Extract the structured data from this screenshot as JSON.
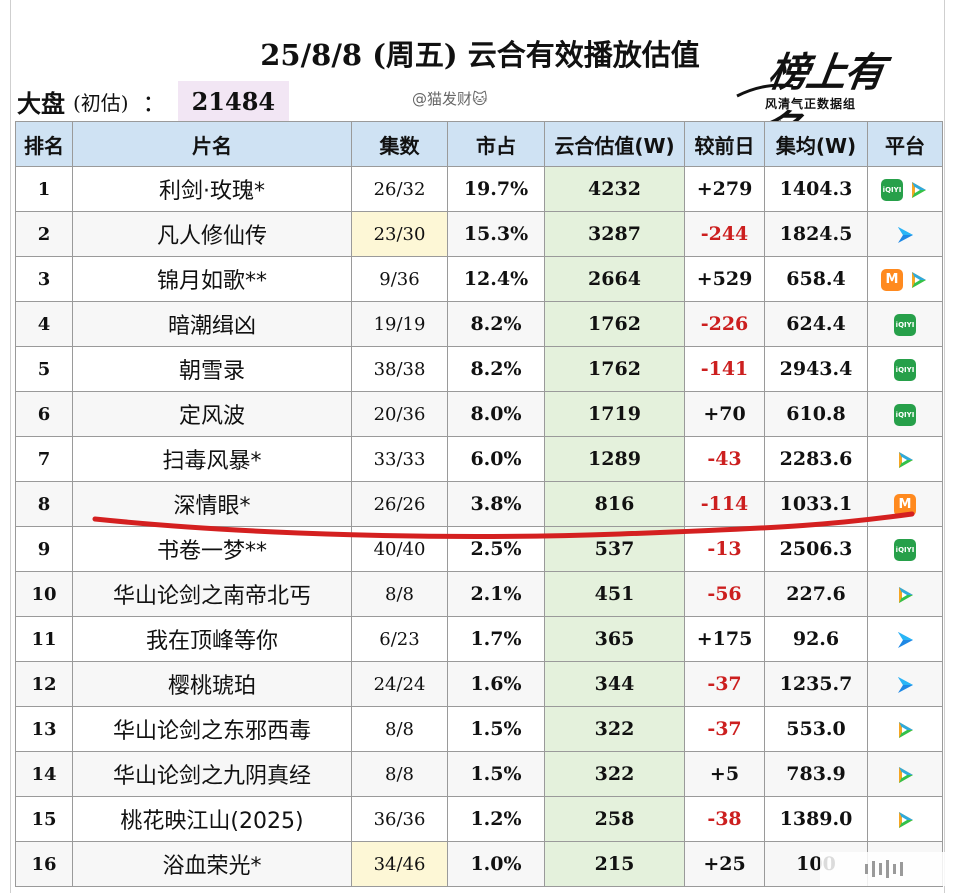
{
  "header": {
    "title": "25/8/8 (周五) 云合有效播放估值",
    "market_label": "大盘",
    "market_sub": "(初估)",
    "market_colon": "：",
    "market_value": "21484",
    "credit": "@猫发财🐱",
    "logo_brand": "榜上有名",
    "logo_tagline": "风清气正数据组"
  },
  "columns": [
    "排名",
    "片名",
    "集数",
    "市占",
    "云合估值(W)",
    "较前日",
    "集均(W)",
    "平台"
  ],
  "rows": [
    {
      "rank": "1",
      "name": "利剑·玫瑰*",
      "episodes": "26/32",
      "share": "19.7%",
      "estimate": "4232",
      "change": "+279",
      "avg": "1404.3",
      "platforms": [
        "iqiyi",
        "tencent"
      ]
    },
    {
      "rank": "2",
      "name": "凡人修仙传",
      "episodes": "23/30",
      "share": "15.3%",
      "estimate": "3287",
      "change": "-244",
      "avg": "1824.5",
      "platforms": [
        "youku"
      ]
    },
    {
      "rank": "3",
      "name": "锦月如歌**",
      "episodes": "9/36",
      "share": "12.4%",
      "estimate": "2664",
      "change": "+529",
      "avg": "658.4",
      "platforms": [
        "mango",
        "tencent"
      ]
    },
    {
      "rank": "4",
      "name": "暗潮缉凶",
      "episodes": "19/19",
      "share": "8.2%",
      "estimate": "1762",
      "change": "-226",
      "avg": "624.4",
      "platforms": [
        "iqiyi"
      ]
    },
    {
      "rank": "5",
      "name": "朝雪录",
      "episodes": "38/38",
      "share": "8.2%",
      "estimate": "1762",
      "change": "-141",
      "avg": "2943.4",
      "platforms": [
        "iqiyi"
      ]
    },
    {
      "rank": "6",
      "name": "定风波",
      "episodes": "20/36",
      "share": "8.0%",
      "estimate": "1719",
      "change": "+70",
      "avg": "610.8",
      "platforms": [
        "iqiyi"
      ]
    },
    {
      "rank": "7",
      "name": "扫毒风暴*",
      "episodes": "33/33",
      "share": "6.0%",
      "estimate": "1289",
      "change": "-43",
      "avg": "2283.6",
      "platforms": [
        "tencent"
      ]
    },
    {
      "rank": "8",
      "name": "深情眼*",
      "episodes": "26/26",
      "share": "3.8%",
      "estimate": "816",
      "change": "-114",
      "avg": "1033.1",
      "platforms": [
        "mango"
      ]
    },
    {
      "rank": "9",
      "name": "书卷一梦**",
      "episodes": "40/40",
      "share": "2.5%",
      "estimate": "537",
      "change": "-13",
      "avg": "2506.3",
      "platforms": [
        "iqiyi"
      ]
    },
    {
      "rank": "10",
      "name": "华山论剑之南帝北丐",
      "episodes": "8/8",
      "share": "2.1%",
      "estimate": "451",
      "change": "-56",
      "avg": "227.6",
      "platforms": [
        "tencent"
      ]
    },
    {
      "rank": "11",
      "name": "我在顶峰等你",
      "episodes": "6/23",
      "share": "1.7%",
      "estimate": "365",
      "change": "+175",
      "avg": "92.6",
      "platforms": [
        "youku"
      ]
    },
    {
      "rank": "12",
      "name": "樱桃琥珀",
      "episodes": "24/24",
      "share": "1.6%",
      "estimate": "344",
      "change": "-37",
      "avg": "1235.7",
      "platforms": [
        "youku"
      ]
    },
    {
      "rank": "13",
      "name": "华山论剑之东邪西毒",
      "episodes": "8/8",
      "share": "1.5%",
      "estimate": "322",
      "change": "-37",
      "avg": "553.0",
      "platforms": [
        "tencent"
      ]
    },
    {
      "rank": "14",
      "name": "华山论剑之九阴真经",
      "episodes": "8/8",
      "share": "1.5%",
      "estimate": "322",
      "change": "+5",
      "avg": "783.9",
      "platforms": [
        "tencent"
      ]
    },
    {
      "rank": "15",
      "name": "桃花映江山(2025)",
      "episodes": "36/36",
      "share": "1.2%",
      "estimate": "258",
      "change": "-38",
      "avg": "1389.0",
      "platforms": [
        "tencent"
      ]
    },
    {
      "rank": "16",
      "name": "浴血荣光*",
      "episodes": "34/46",
      "share": "1.0%",
      "estimate": "215",
      "change": "+25",
      "avg": "100",
      "platforms": []
    }
  ],
  "highlighted_episode_rows": [
    "2",
    "16"
  ],
  "colors": {
    "header_bg": "#cfe2f3",
    "estimate_bg": "#e4f1dc",
    "negative": "#cc1f1f",
    "market_value_bg": "#f2e6f4",
    "red_mark": "#d42020"
  }
}
